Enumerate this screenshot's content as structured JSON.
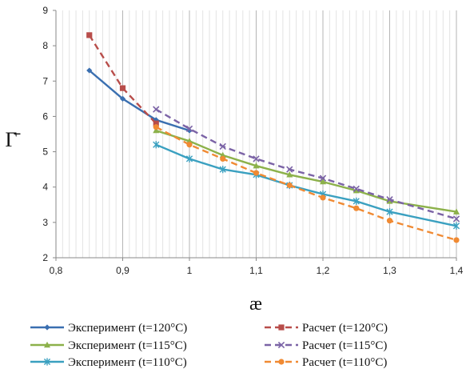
{
  "chart_data": {
    "type": "line",
    "xlabel": "æ",
    "ylabel": "Γ̄",
    "xlim": [
      0.8,
      1.4
    ],
    "ylim": [
      2,
      9
    ],
    "x_ticks": [
      "0,8",
      "0,9",
      "1",
      "1,1",
      "1,2",
      "1,3",
      "1,4"
    ],
    "y_ticks": [
      "2",
      "3",
      "4",
      "5",
      "6",
      "7",
      "8",
      "9"
    ],
    "grid": "vertical",
    "legend_position": "bottom",
    "series": [
      {
        "name": "Эксперимент (t=120°C)",
        "color": "#3a6fb0",
        "style": "solid",
        "marker": "diamond",
        "x": [
          0.85,
          0.9,
          0.95,
          1.0
        ],
        "y": [
          7.3,
          6.5,
          5.9,
          5.6
        ]
      },
      {
        "name": "Эксперимент (t=115°C)",
        "color": "#8cb14a",
        "style": "solid",
        "marker": "triangle",
        "x": [
          0.95,
          1.0,
          1.05,
          1.1,
          1.15,
          1.2,
          1.25,
          1.3,
          1.4
        ],
        "y": [
          5.6,
          5.3,
          4.9,
          4.6,
          4.35,
          4.15,
          3.9,
          3.6,
          3.3
        ]
      },
      {
        "name": "Эксперимент (t=110°C)",
        "color": "#3aa0c0",
        "style": "solid",
        "marker": "star",
        "x": [
          0.95,
          1.0,
          1.05,
          1.1,
          1.15,
          1.2,
          1.25,
          1.3,
          1.4
        ],
        "y": [
          5.2,
          4.8,
          4.5,
          4.35,
          4.05,
          3.8,
          3.6,
          3.3,
          2.9
        ]
      },
      {
        "name": "Расчет (t=120°C)",
        "color": "#b84d4a",
        "style": "dashed",
        "marker": "square",
        "x": [
          0.85,
          0.9,
          0.95
        ],
        "y": [
          8.3,
          6.8,
          5.8
        ]
      },
      {
        "name": "Расчет (t=115°C)",
        "color": "#7b63a6",
        "style": "dashed",
        "marker": "x",
        "x": [
          0.95,
          1.0,
          1.05,
          1.1,
          1.15,
          1.2,
          1.25,
          1.3,
          1.4
        ],
        "y": [
          6.2,
          5.65,
          5.15,
          4.8,
          4.5,
          4.25,
          3.95,
          3.65,
          3.1
        ]
      },
      {
        "name": "Расчет (t=110°C)",
        "color": "#f08a33",
        "style": "dashed",
        "marker": "circle",
        "x": [
          0.95,
          1.0,
          1.05,
          1.1,
          1.15,
          1.2,
          1.25,
          1.3,
          1.4
        ],
        "y": [
          5.7,
          5.2,
          4.8,
          4.4,
          4.05,
          3.7,
          3.4,
          3.05,
          2.5
        ]
      }
    ]
  }
}
